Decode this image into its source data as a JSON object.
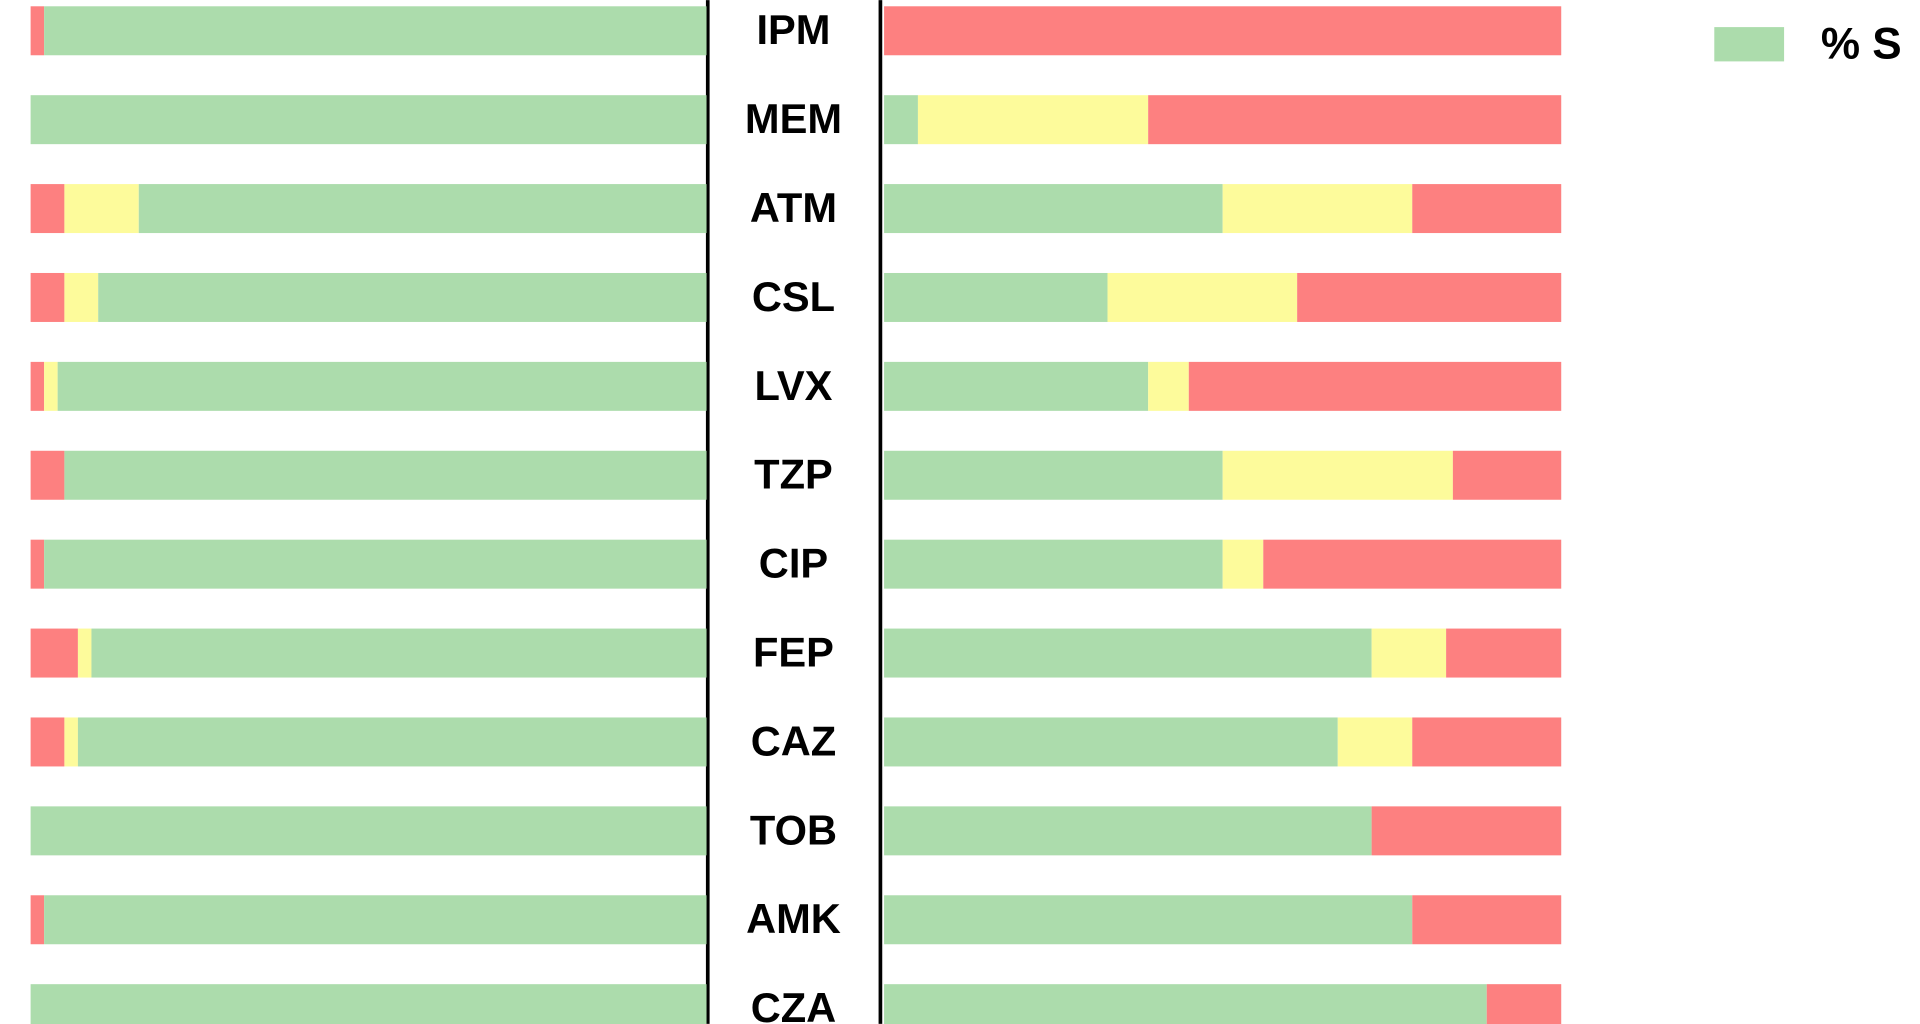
{
  "chart_data": [
    {
      "type": "bar",
      "orientation": "horizontal",
      "stacked": true,
      "categories": [
        "IPM",
        "MEM",
        "ATM",
        "CSL",
        "LVX",
        "TZP",
        "CIP",
        "FEP",
        "CAZ",
        "TOB",
        "AMK",
        "CZA"
      ],
      "xlim": [
        0,
        100
      ],
      "series": [
        {
          "color": "#fd8080",
          "values": [
            2,
            0,
            5,
            5,
            2,
            5,
            2,
            7,
            5,
            0,
            2,
            0
          ]
        },
        {
          "color": "#fdfb9b",
          "values": [
            0,
            0,
            11,
            5,
            2,
            0,
            0,
            2,
            2,
            0,
            0,
            0
          ]
        },
        {
          "name": "% S",
          "color": "#acdcac",
          "values": [
            98,
            100,
            84,
            90,
            96,
            95,
            98,
            91,
            93,
            100,
            98,
            100
          ]
        }
      ]
    },
    {
      "type": "bar",
      "orientation": "horizontal",
      "stacked": true,
      "xlim": [
        0,
        100
      ],
      "series": [
        {
          "color": "#acdcac",
          "values": [
            0,
            5,
            50,
            33,
            39,
            50,
            50,
            72,
            67,
            72,
            78,
            89
          ]
        },
        {
          "color": "#fdfb9b",
          "values": [
            0,
            34,
            28,
            28,
            6,
            34,
            6,
            11,
            11,
            0,
            0,
            0
          ]
        },
        {
          "color": "#fd8080",
          "values": [
            100,
            61,
            22,
            39,
            55,
            16,
            44,
            17,
            22,
            28,
            22,
            11
          ]
        }
      ]
    }
  ]
}
